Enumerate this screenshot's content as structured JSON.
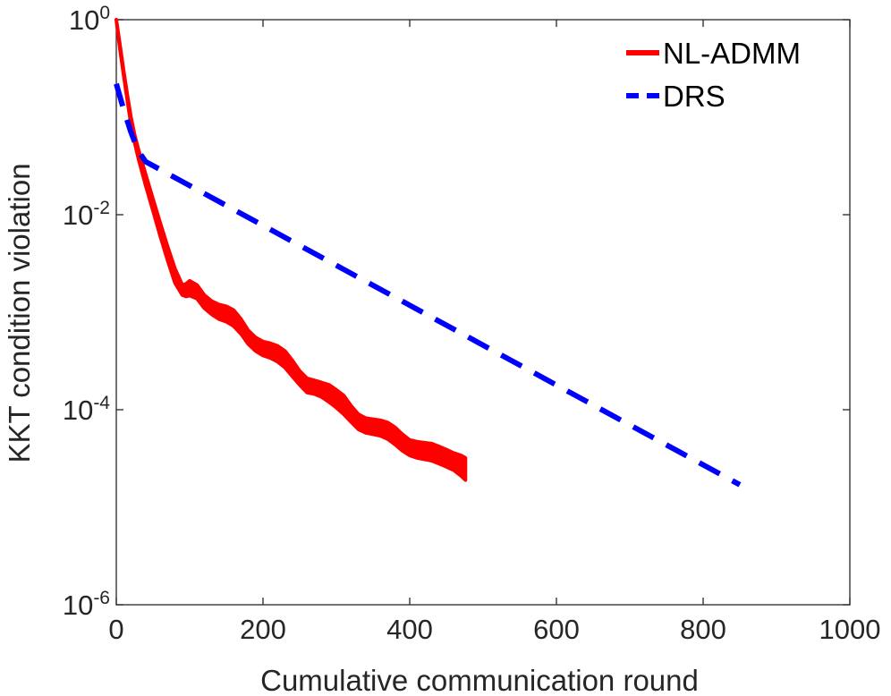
{
  "chart_data": {
    "type": "line",
    "title": "",
    "xlabel": "Cumulative communication round",
    "ylabel": "KKT condition violation",
    "xlim": [
      0,
      1000
    ],
    "ylim_log10": [
      -6,
      0
    ],
    "xscale": "linear",
    "yscale": "log",
    "grid": false,
    "legend_position": "top-right",
    "x_ticks": [
      "0",
      "200",
      "400",
      "600",
      "800",
      "1000"
    ],
    "y_ticks": [
      {
        "base": "10",
        "exp": "0"
      },
      {
        "base": "10",
        "exp": "-2"
      },
      {
        "base": "10",
        "exp": "-4"
      },
      {
        "base": "10",
        "exp": "-6"
      }
    ],
    "series": [
      {
        "name": "NL-ADMM",
        "color": "#ff0000",
        "style": "solid",
        "x": [
          0,
          5,
          10,
          15,
          20,
          25,
          30,
          40,
          50,
          60,
          70,
          80,
          90,
          95,
          100,
          110,
          120,
          130,
          140,
          150,
          160,
          170,
          180,
          190,
          200,
          210,
          220,
          230,
          240,
          250,
          260,
          270,
          280,
          290,
          300,
          310,
          320,
          330,
          340,
          350,
          360,
          370,
          380,
          390,
          400,
          410,
          420,
          430,
          440,
          450,
          460,
          470,
          476
        ],
        "upper": [
          1.2,
          0.55,
          0.3,
          0.17,
          0.1,
          0.066,
          0.047,
          0.026,
          0.0145,
          0.0082,
          0.0047,
          0.0028,
          0.0019,
          0.00195,
          0.0021,
          0.0019,
          0.0015,
          0.0013,
          0.0012,
          0.00115,
          0.00105,
          0.00085,
          0.00065,
          0.00055,
          0.0005,
          0.00048,
          0.00045,
          0.0004,
          0.00032,
          0.00025,
          0.00021,
          0.0002,
          0.00019,
          0.00018,
          0.00016,
          0.00014,
          0.00011,
          9e-05,
          8.2e-05,
          8e-05,
          7.8e-05,
          7.4e-05,
          6.6e-05,
          5.6e-05,
          4.9e-05,
          4.7e-05,
          4.6e-05,
          4.5e-05,
          4.2e-05,
          3.9e-05,
          3.6e-05,
          3.4e-05,
          3.2e-05
        ],
        "lower": [
          1.2,
          0.5,
          0.27,
          0.15,
          0.085,
          0.055,
          0.038,
          0.02,
          0.011,
          0.006,
          0.0034,
          0.002,
          0.0015,
          0.00145,
          0.00148,
          0.00138,
          0.0011,
          0.00095,
          0.00085,
          0.0008,
          0.00072,
          0.0006,
          0.00047,
          0.0004,
          0.00036,
          0.00034,
          0.00031,
          0.00027,
          0.00022,
          0.00018,
          0.00015,
          0.000145,
          0.000135,
          0.00012,
          0.000105,
          9e-05,
          7.5e-05,
          6.3e-05,
          5.8e-05,
          5.6e-05,
          5.4e-05,
          5e-05,
          4.4e-05,
          3.8e-05,
          3.4e-05,
          3.2e-05,
          3.1e-05,
          3e-05,
          2.8e-05,
          2.6e-05,
          2.4e-05,
          2.1e-05,
          1.9e-05
        ]
      },
      {
        "name": "DRS",
        "color": "#0000ff",
        "style": "dashed",
        "x": [
          0,
          10,
          20,
          30,
          40,
          850
        ],
        "y": [
          0.22,
          0.12,
          0.07,
          0.045,
          0.035,
          1.7e-05
        ]
      }
    ]
  }
}
